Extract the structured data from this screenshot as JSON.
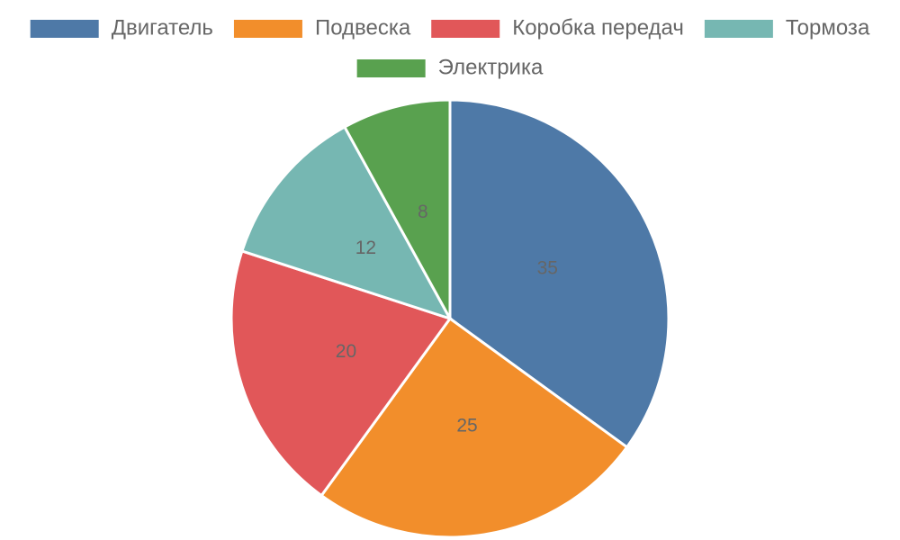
{
  "chart_data": {
    "type": "pie",
    "categories": [
      "Двигатель",
      "Подвеска",
      "Коробка передач",
      "Тормоза",
      "Электрика"
    ],
    "values": [
      35,
      25,
      20,
      12,
      8
    ],
    "colors": [
      "#4e79a7",
      "#f28e2b",
      "#e15759",
      "#76b7b2",
      "#59a14f"
    ],
    "legend": "top"
  }
}
